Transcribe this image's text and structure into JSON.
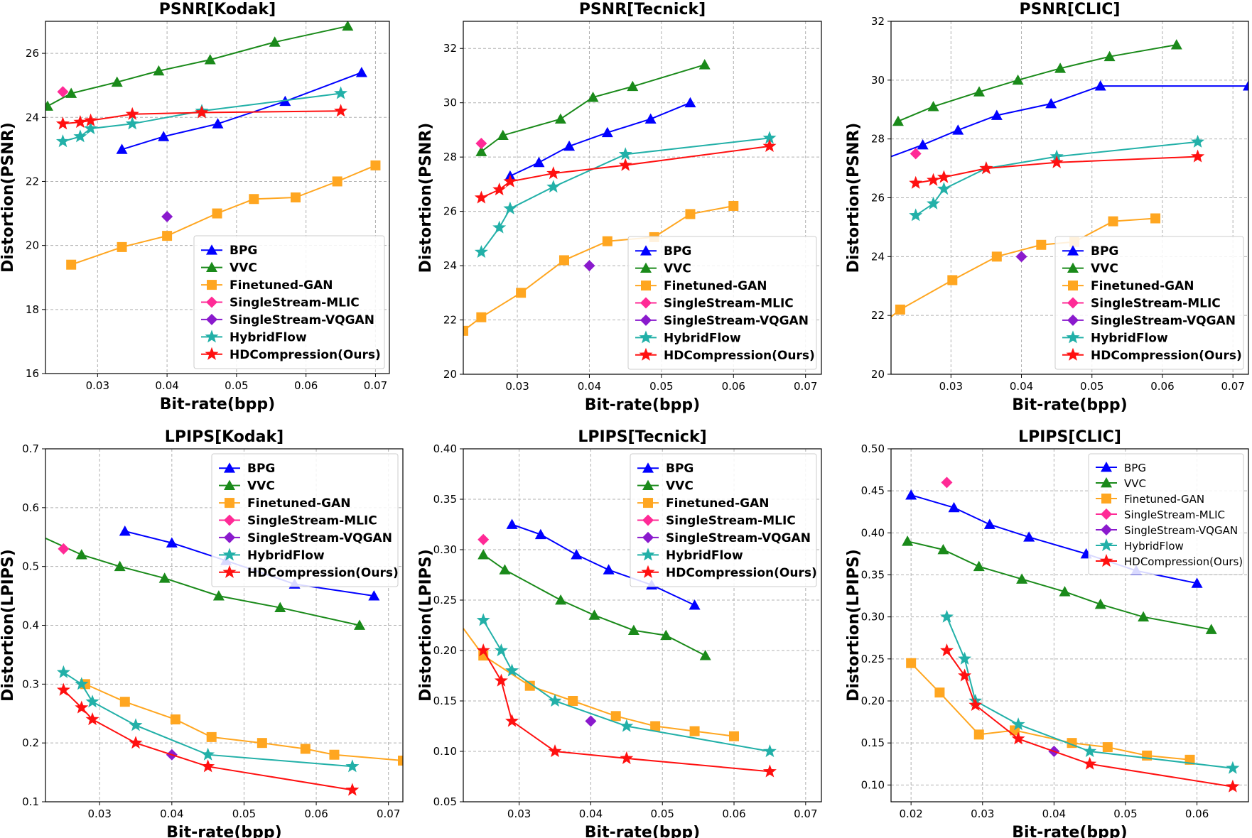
{
  "legend_labels": [
    "BPG",
    "VVC",
    "Finetuned-GAN",
    "SingleStream-MLIC",
    "SingleStream-VQGAN",
    "HybridFlow",
    "HDCompression(Ours)"
  ],
  "colors": {
    "BPG": "#0000ff",
    "VVC": "#1a8a1a",
    "Finetuned-GAN": "#ffa620",
    "SingleStream-MLIC": "#ff2a96",
    "SingleStream-VQGAN": "#8a1acd",
    "HybridFlow": "#22b0a8",
    "HDCompression(Ours)": "#ff1010"
  },
  "chart_data": [
    {
      "type": "line",
      "title": "PSNR[Kodak]",
      "xlabel": "Bit-rate(bpp)",
      "ylabel": "Distortion(PSNR)",
      "xlim": [
        0.0225,
        0.072
      ],
      "ylim": [
        16,
        27
      ],
      "xticks": [
        0.03,
        0.04,
        0.05,
        0.06,
        0.07
      ],
      "yticks": [
        16,
        18,
        20,
        22,
        24,
        26
      ],
      "xtick_labels": [
        "0.03",
        "0.04",
        "0.05",
        "0.06",
        "0.07"
      ],
      "ytick_labels": [
        "16",
        "18",
        "20",
        "22",
        "24",
        "26"
      ],
      "legend": "lower-right",
      "legend_bold": true,
      "series": [
        {
          "name": "BPG",
          "x": [
            0.0335,
            0.0395,
            0.0473,
            0.057,
            0.068
          ],
          "y": [
            23.0,
            23.4,
            23.8,
            24.5,
            25.4
          ]
        },
        {
          "name": "VVC",
          "x": [
            0.0228,
            0.0262,
            0.0328,
            0.0388,
            0.0462,
            0.0555,
            0.066
          ],
          "y": [
            24.35,
            24.75,
            25.1,
            25.45,
            25.8,
            26.35,
            26.85
          ]
        },
        {
          "name": "Finetuned-GAN",
          "x": [
            0.0262,
            0.0335,
            0.04,
            0.0472,
            0.0525,
            0.0585,
            0.0645,
            0.07
          ],
          "y": [
            19.4,
            19.95,
            20.3,
            21.0,
            21.45,
            21.5,
            22.0,
            22.5
          ]
        },
        {
          "name": "SingleStream-MLIC",
          "x": [
            0.025
          ],
          "y": [
            24.8
          ]
        },
        {
          "name": "SingleStream-VQGAN",
          "x": [
            0.04
          ],
          "y": [
            20.9
          ]
        },
        {
          "name": "HybridFlow",
          "x": [
            0.025,
            0.0275,
            0.029,
            0.035,
            0.045,
            0.065
          ],
          "y": [
            23.25,
            23.4,
            23.65,
            23.8,
            24.2,
            24.75
          ]
        },
        {
          "name": "HDCompression(Ours)",
          "x": [
            0.025,
            0.0275,
            0.029,
            0.035,
            0.045,
            0.065
          ],
          "y": [
            23.8,
            23.85,
            23.9,
            24.1,
            24.15,
            24.2
          ]
        }
      ]
    },
    {
      "type": "line",
      "title": "PSNR[Tecnick]",
      "xlabel": "Bit-rate(bpp)",
      "ylabel": "Distortion(PSNR)",
      "xlim": [
        0.0225,
        0.0722
      ],
      "ylim": [
        20,
        33
      ],
      "xticks": [
        0.03,
        0.04,
        0.05,
        0.06,
        0.07
      ],
      "yticks": [
        20,
        22,
        24,
        26,
        28,
        30,
        32
      ],
      "xtick_labels": [
        "0.03",
        "0.04",
        "0.05",
        "0.06",
        "0.07"
      ],
      "ytick_labels": [
        "20",
        "22",
        "24",
        "26",
        "28",
        "30",
        "32"
      ],
      "legend": "lower-right",
      "legend_bold": true,
      "series": [
        {
          "name": "BPG",
          "x": [
            0.029,
            0.033,
            0.0372,
            0.0425,
            0.0485,
            0.054
          ],
          "y": [
            27.3,
            27.8,
            28.4,
            28.9,
            29.4,
            30.0
          ]
        },
        {
          "name": "VVC",
          "x": [
            0.025,
            0.028,
            0.036,
            0.0405,
            0.046,
            0.056
          ],
          "y": [
            28.2,
            28.8,
            29.4,
            30.2,
            30.6,
            31.4
          ]
        },
        {
          "name": "Finetuned-GAN",
          "x": [
            0.0225,
            0.025,
            0.0305,
            0.0365,
            0.0425,
            0.049,
            0.054,
            0.06
          ],
          "y": [
            21.6,
            22.1,
            23.0,
            24.2,
            24.9,
            25.05,
            25.9,
            26.2
          ]
        },
        {
          "name": "SingleStream-MLIC",
          "x": [
            0.025
          ],
          "y": [
            28.5
          ]
        },
        {
          "name": "SingleStream-VQGAN",
          "x": [
            0.04
          ],
          "y": [
            24.0
          ]
        },
        {
          "name": "HybridFlow",
          "x": [
            0.025,
            0.0275,
            0.029,
            0.035,
            0.045,
            0.065
          ],
          "y": [
            24.5,
            25.4,
            26.1,
            26.9,
            28.1,
            28.7
          ]
        },
        {
          "name": "HDCompression(Ours)",
          "x": [
            0.025,
            0.0275,
            0.029,
            0.035,
            0.045,
            0.065
          ],
          "y": [
            26.5,
            26.8,
            27.1,
            27.4,
            27.7,
            28.4
          ]
        }
      ]
    },
    {
      "type": "line",
      "title": "PSNR[CLIC]",
      "xlabel": "Bit-rate(bpp)",
      "ylabel": "Distortion(PSNR)",
      "xlim": [
        0.0215,
        0.0722
      ],
      "ylim": [
        20,
        32
      ],
      "xticks": [
        0.03,
        0.04,
        0.05,
        0.06,
        0.07
      ],
      "yticks": [
        20,
        22,
        24,
        26,
        28,
        30,
        32
      ],
      "xtick_labels": [
        "0.03",
        "0.04",
        "0.05",
        "0.06",
        "0.07"
      ],
      "ytick_labels": [
        "20",
        "22",
        "24",
        "26",
        "28",
        "30",
        "32"
      ],
      "legend": "lower-right",
      "legend_bold": true,
      "series": [
        {
          "name": "BPG",
          "x": [
            0.0215,
            0.026,
            0.031,
            0.0365,
            0.0442,
            0.0512,
            0.0722
          ],
          "y": [
            27.4,
            27.8,
            28.3,
            28.8,
            29.2,
            29.8,
            29.8
          ],
          "marker_count": 6,
          "marker_start": 1
        },
        {
          "name": "VVC",
          "x": [
            0.0225,
            0.0275,
            0.034,
            0.0395,
            0.0455,
            0.0525,
            0.062
          ],
          "y": [
            28.6,
            29.1,
            29.6,
            30.0,
            30.4,
            30.8,
            31.2
          ]
        },
        {
          "name": "Finetuned-GAN",
          "x": [
            0.0215,
            0.0228,
            0.0302,
            0.0365,
            0.0428,
            0.0475,
            0.053,
            0.059
          ],
          "y": [
            21.95,
            22.2,
            23.2,
            24.0,
            24.4,
            24.5,
            25.2,
            25.3
          ],
          "marker_start": 1
        },
        {
          "name": "SingleStream-MLIC",
          "x": [
            0.025
          ],
          "y": [
            27.5
          ]
        },
        {
          "name": "SingleStream-VQGAN",
          "x": [
            0.04
          ],
          "y": [
            24.0
          ]
        },
        {
          "name": "HybridFlow",
          "x": [
            0.025,
            0.0275,
            0.029,
            0.035,
            0.045,
            0.065
          ],
          "y": [
            25.4,
            25.8,
            26.3,
            27.0,
            27.4,
            27.9
          ]
        },
        {
          "name": "HDCompression(Ours)",
          "x": [
            0.025,
            0.0275,
            0.029,
            0.035,
            0.045,
            0.065
          ],
          "y": [
            26.5,
            26.6,
            26.7,
            27.0,
            27.2,
            27.4
          ]
        }
      ]
    },
    {
      "type": "line",
      "title": "LPIPS[Kodak]",
      "xlabel": "Bit-rate(bpp)",
      "ylabel": "Distortion(LPIPS)",
      "xlim": [
        0.0225,
        0.072
      ],
      "ylim": [
        0.1,
        0.7
      ],
      "xticks": [
        0.03,
        0.04,
        0.05,
        0.06,
        0.07
      ],
      "yticks": [
        0.1,
        0.2,
        0.3,
        0.4,
        0.5,
        0.6,
        0.7
      ],
      "xtick_labels": [
        "0.03",
        "0.04",
        "0.05",
        "0.06",
        "0.07"
      ],
      "ytick_labels": [
        "0.1",
        "0.2",
        "0.3",
        "0.4",
        "0.5",
        "0.6",
        "0.7"
      ],
      "legend": "upper-right",
      "legend_bold": true,
      "series": [
        {
          "name": "BPG",
          "x": [
            0.0335,
            0.04,
            0.0475,
            0.057,
            0.068
          ],
          "y": [
            0.56,
            0.54,
            0.51,
            0.47,
            0.45
          ]
        },
        {
          "name": "VVC",
          "x": [
            0.0225,
            0.0275,
            0.0328,
            0.039,
            0.0465,
            0.055,
            0.066
          ],
          "y": [
            0.548,
            0.52,
            0.5,
            0.48,
            0.45,
            0.43,
            0.4
          ],
          "marker_start": 1
        },
        {
          "name": "Finetuned-GAN",
          "x": [
            0.028,
            0.0335,
            0.0405,
            0.0455,
            0.0525,
            0.0585,
            0.0625,
            0.072
          ],
          "y": [
            0.3,
            0.27,
            0.24,
            0.21,
            0.2,
            0.19,
            0.18,
            0.17
          ]
        },
        {
          "name": "SingleStream-MLIC",
          "x": [
            0.025
          ],
          "y": [
            0.53
          ]
        },
        {
          "name": "SingleStream-VQGAN",
          "x": [
            0.04
          ],
          "y": [
            0.18
          ]
        },
        {
          "name": "HybridFlow",
          "x": [
            0.025,
            0.0275,
            0.029,
            0.035,
            0.045,
            0.065
          ],
          "y": [
            0.32,
            0.3,
            0.27,
            0.23,
            0.18,
            0.16
          ]
        },
        {
          "name": "HDCompression(Ours)",
          "x": [
            0.025,
            0.0275,
            0.029,
            0.035,
            0.045,
            0.065
          ],
          "y": [
            0.29,
            0.26,
            0.24,
            0.2,
            0.16,
            0.12
          ]
        }
      ]
    },
    {
      "type": "line",
      "title": "LPIPS[Tecnick]",
      "xlabel": "Bit-rate(bpp)",
      "ylabel": "Distortion(LPIPS)",
      "xlim": [
        0.0222,
        0.0722
      ],
      "ylim": [
        0.05,
        0.4
      ],
      "xticks": [
        0.03,
        0.04,
        0.05,
        0.06,
        0.07
      ],
      "yticks": [
        0.05,
        0.1,
        0.15,
        0.2,
        0.25,
        0.3,
        0.35,
        0.4
      ],
      "xtick_labels": [
        "0.03",
        "0.04",
        "0.05",
        "0.06",
        "0.07"
      ],
      "ytick_labels": [
        "0.05",
        "0.10",
        "0.15",
        "0.20",
        "0.25",
        "0.30",
        "0.35",
        "0.40"
      ],
      "legend": "upper-right",
      "legend_bold": true,
      "series": [
        {
          "name": "BPG",
          "x": [
            0.029,
            0.033,
            0.038,
            0.0425,
            0.0485,
            0.0545
          ],
          "y": [
            0.325,
            0.315,
            0.295,
            0.28,
            0.265,
            0.245
          ]
        },
        {
          "name": "VVC",
          "x": [
            0.025,
            0.028,
            0.0358,
            0.0405,
            0.046,
            0.0505,
            0.056
          ],
          "y": [
            0.295,
            0.28,
            0.25,
            0.235,
            0.22,
            0.215,
            0.195
          ]
        },
        {
          "name": "Finetuned-GAN",
          "x": [
            0.0222,
            0.025,
            0.0315,
            0.0375,
            0.0435,
            0.049,
            0.0545,
            0.06
          ],
          "y": [
            0.222,
            0.195,
            0.165,
            0.15,
            0.135,
            0.125,
            0.12,
            0.115
          ],
          "marker_start": 1
        },
        {
          "name": "SingleStream-MLIC",
          "x": [
            0.025
          ],
          "y": [
            0.31
          ]
        },
        {
          "name": "SingleStream-VQGAN",
          "x": [
            0.04
          ],
          "y": [
            0.13
          ]
        },
        {
          "name": "HybridFlow",
          "x": [
            0.025,
            0.0275,
            0.029,
            0.035,
            0.045,
            0.065
          ],
          "y": [
            0.23,
            0.2,
            0.18,
            0.15,
            0.125,
            0.1
          ]
        },
        {
          "name": "HDCompression(Ours)",
          "x": [
            0.025,
            0.0275,
            0.029,
            0.035,
            0.045,
            0.065
          ],
          "y": [
            0.2,
            0.17,
            0.13,
            0.1,
            0.093,
            0.08
          ]
        }
      ]
    },
    {
      "type": "line",
      "title": "LPIPS[CLIC]",
      "xlabel": "Bit-rate(bpp)",
      "ylabel": "Distortion(LPIPS)",
      "xlim": [
        0.0172,
        0.0672
      ],
      "ylim": [
        0.08,
        0.5
      ],
      "xticks": [
        0.02,
        0.03,
        0.04,
        0.05,
        0.06
      ],
      "yticks": [
        0.1,
        0.15,
        0.2,
        0.25,
        0.3,
        0.35,
        0.4,
        0.45,
        0.5
      ],
      "xtick_labels": [
        "0.02",
        "0.03",
        "0.04",
        "0.05",
        "0.06"
      ],
      "ytick_labels": [
        "0.10",
        "0.15",
        "0.20",
        "0.25",
        "0.30",
        "0.35",
        "0.40",
        "0.45",
        "0.50"
      ],
      "legend": "upper-right",
      "legend_bold": false,
      "series": [
        {
          "name": "BPG",
          "x": [
            0.02,
            0.026,
            0.031,
            0.0365,
            0.0445,
            0.0515,
            0.06
          ],
          "y": [
            0.445,
            0.43,
            0.41,
            0.395,
            0.375,
            0.355,
            0.34
          ]
        },
        {
          "name": "VVC",
          "x": [
            0.0195,
            0.0245,
            0.0295,
            0.0355,
            0.0415,
            0.0465,
            0.0525,
            0.062
          ],
          "y": [
            0.39,
            0.38,
            0.36,
            0.345,
            0.33,
            0.315,
            0.3,
            0.285
          ]
        },
        {
          "name": "Finetuned-GAN",
          "x": [
            0.02,
            0.024,
            0.0295,
            0.0345,
            0.0425,
            0.0475,
            0.053,
            0.059
          ],
          "y": [
            0.245,
            0.21,
            0.16,
            0.165,
            0.15,
            0.145,
            0.135,
            0.13
          ]
        },
        {
          "name": "SingleStream-MLIC",
          "x": [
            0.025
          ],
          "y": [
            0.46
          ]
        },
        {
          "name": "SingleStream-VQGAN",
          "x": [
            0.04
          ],
          "y": [
            0.14
          ]
        },
        {
          "name": "HybridFlow",
          "x": [
            0.025,
            0.0275,
            0.029,
            0.035,
            0.045,
            0.065
          ],
          "y": [
            0.3,
            0.25,
            0.2,
            0.172,
            0.14,
            0.12
          ]
        },
        {
          "name": "HDCompression(Ours)",
          "x": [
            0.025,
            0.0275,
            0.029,
            0.035,
            0.045,
            0.065
          ],
          "y": [
            0.26,
            0.23,
            0.195,
            0.155,
            0.125,
            0.098
          ]
        }
      ]
    }
  ]
}
